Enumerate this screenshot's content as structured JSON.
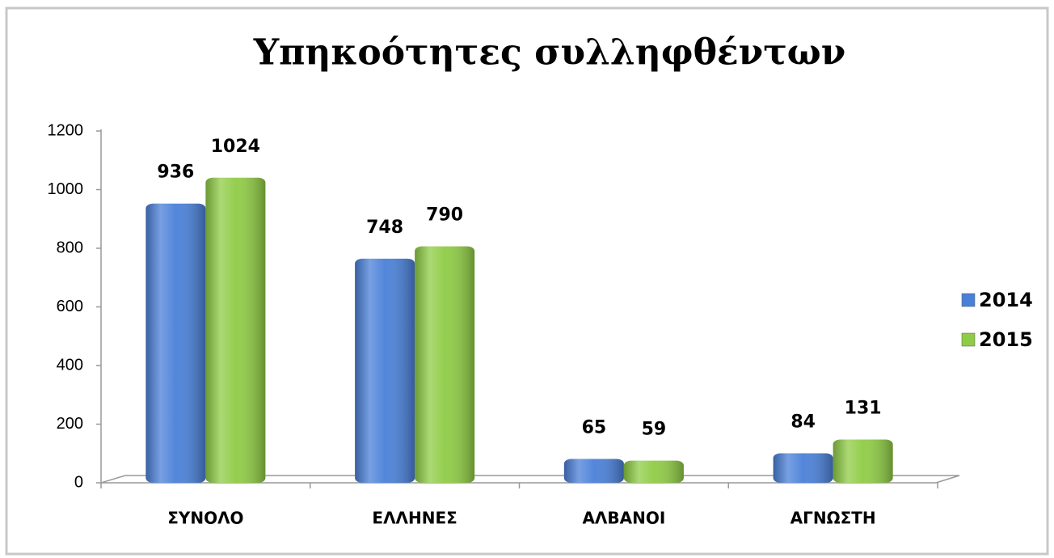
{
  "chart_data": {
    "type": "bar",
    "title": "Υπηκοότητες συλληφθέντων",
    "categories": [
      "ΣΥΝΟΛΟ",
      "ΕΛΛΗΝΕΣ",
      "ΑΛΒΑΝΟΙ",
      "ΑΓΝΩΣΤΗ"
    ],
    "series": [
      {
        "name": "2014",
        "color": "#4a80d8",
        "values": [
          936,
          748,
          65,
          84
        ]
      },
      {
        "name": "2015",
        "color": "#8fcc45",
        "values": [
          1024,
          790,
          59,
          131
        ]
      }
    ],
    "ylim": [
      0,
      1200
    ],
    "yticks": [
      0,
      200,
      400,
      600,
      800,
      1000,
      1200
    ],
    "legend": "right",
    "grid": false
  }
}
